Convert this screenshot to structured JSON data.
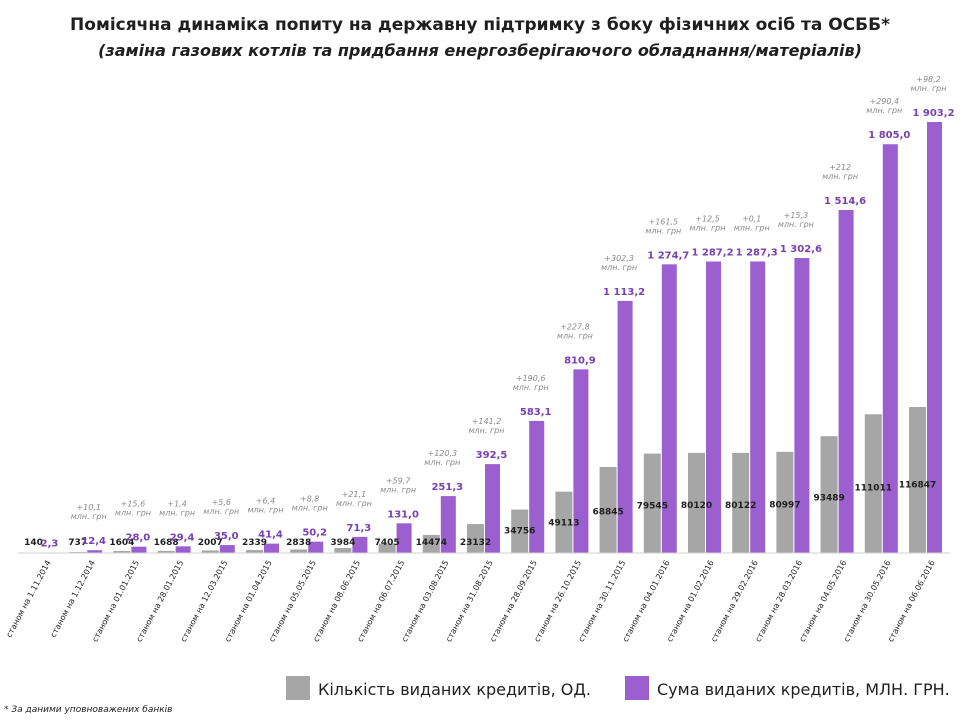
{
  "chart_data": {
    "type": "bar",
    "title": "Помісячна динаміка попиту на державну підтримку з боку фізичних осіб та ОСББ*",
    "subtitle": "(заміна газових котлів  та  придбання енергозберігаючого обладнання/матеріалів)",
    "footnote": "* За даними уповноважених банків",
    "legend_position": "bottom",
    "grid": false,
    "categories": [
      "станом на 1.11.2014",
      "станом на 1.12.2014",
      "станом на 01.01.2015",
      "станом на 28.01.2015",
      "станом на 12.03.2015",
      "станом на 01.04.2015",
      "станом на 05.05.2015",
      "станом на 08.06.2015",
      "станом на 06.07.2015",
      "станом на 03.08.2015",
      "станом на 31.08.2015",
      "станом на 28.09.2015",
      "станом на 26.10.2015",
      "станом на 30.11.2015",
      "станом на 04.01.2016",
      "станом на 01.02.2016",
      "станом на 29.02.2016",
      "станом на 28.03.2016",
      "станом на 04.05.2016",
      "станом на 30.05.2016",
      "станом на 06.06.2016"
    ],
    "series": [
      {
        "name": "Кількість виданих кредитів, ОД.",
        "color": "#a6a6a6",
        "values": [
          140,
          737,
          1604,
          1688,
          2007,
          2339,
          2838,
          3984,
          7405,
          14474,
          23132,
          34756,
          49113,
          68845,
          79545,
          80120,
          80122,
          80997,
          93489,
          111011,
          116847
        ],
        "labels": [
          "140",
          "737",
          "1604",
          "1688",
          "2007",
          "2339",
          "2838",
          "3984",
          "7405",
          "14474",
          "23132",
          "34756",
          "49113",
          "68845",
          "79545",
          "80120",
          "80122",
          "80997",
          "93489",
          "111011",
          "116847"
        ]
      },
      {
        "name": "Сума виданих кредитів, МЛН. ГРН.",
        "color": "#9b5fd0",
        "values": [
          2.3,
          12.4,
          28.0,
          29.4,
          35.0,
          41.4,
          50.2,
          71.3,
          131.0,
          251.3,
          392.5,
          583.1,
          810.9,
          1113.2,
          1274.7,
          1287.2,
          1287.3,
          1302.6,
          1514.6,
          1805.0,
          1903.2
        ],
        "labels": [
          "2,3",
          "12,4",
          "28,0",
          "29,4",
          "35,0",
          "41,4",
          "50,2",
          "71,3",
          "131,0",
          "251,3",
          "392,5",
          "583,1",
          "810,9",
          "1 113,2",
          "1 274,7",
          "1 287,2",
          "1 287,3",
          "1 302,6",
          "1 514,6",
          "1 805,0",
          "1 903,2"
        ]
      }
    ],
    "increments": [
      "",
      "+10,1",
      "+15,6",
      "+1,4",
      "+5,6",
      "+6,4",
      "+8,8",
      "+21,1",
      "+59,7",
      "+120,3",
      "+141,2",
      "+190,6",
      "+227,8",
      "+302,3",
      "+161,5",
      "+12,5",
      "+0,1",
      "+15,3",
      "+212",
      "+290,4",
      "+98,2"
    ],
    "increment_unit": "млн. грн"
  }
}
